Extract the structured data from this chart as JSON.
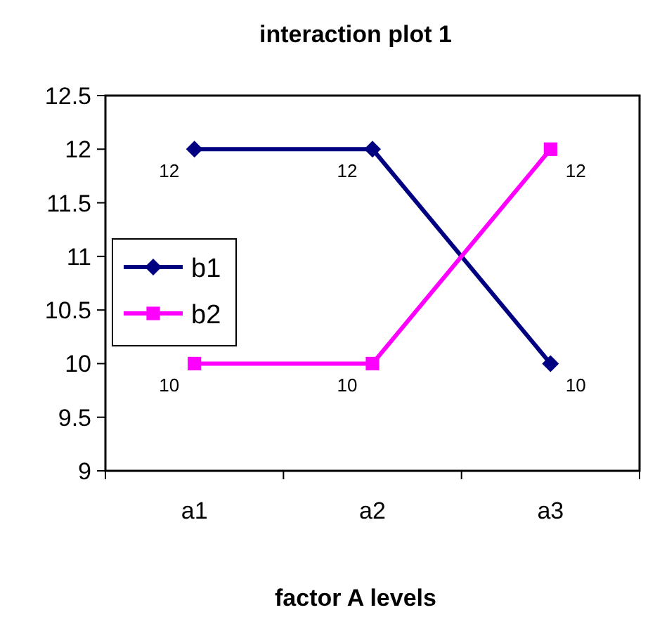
{
  "chart_data": {
    "type": "line",
    "title": "interaction plot 1",
    "xlabel": "factor A levels",
    "categories": [
      "a1",
      "a2",
      "a3"
    ],
    "series": [
      {
        "name": "b1",
        "color": "#000080",
        "values": [
          12,
          12,
          10
        ],
        "marker": "diamond"
      },
      {
        "name": "b2",
        "color": "#ff00ff",
        "values": [
          10,
          10,
          12
        ],
        "marker": "square"
      }
    ],
    "ylim": [
      9,
      12.5
    ],
    "yticks": [
      9,
      9.5,
      10,
      10.5,
      11,
      11.5,
      12,
      12.5
    ],
    "grid": false,
    "legend": "left",
    "data_labels": true,
    "line_style": "solid"
  }
}
